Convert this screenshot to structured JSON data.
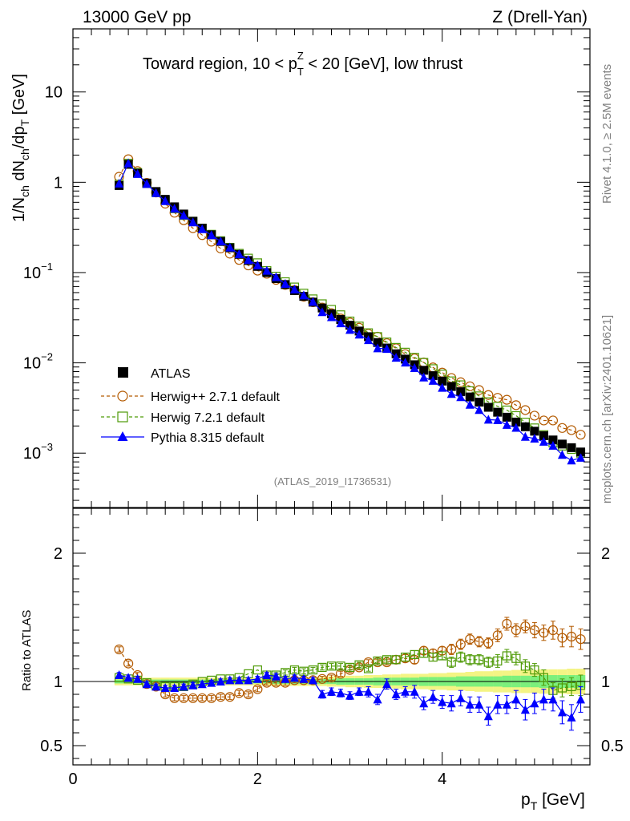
{
  "header": {
    "left": "13000 GeV pp",
    "right": "Z (Drell-Yan)"
  },
  "side": {
    "rivet": "Rivet 4.1.0, ≥ 2.5M events",
    "site": "mcplots.cern.ch [arXiv:2401.10621]"
  },
  "colors": {
    "atlas": "#000000",
    "herwigpp": "#b35a00",
    "herwig7": "#4e9a06",
    "pythia": "#0000ff",
    "band_inner": "#7cf07c",
    "band_outer": "#f4f484"
  },
  "chart_data": [
    {
      "type": "scatter",
      "panel": "main",
      "title_pre": "Toward region, 10 < p",
      "title_sup": "Z",
      "title_sub": "T",
      "title_post": " < 20 [GeV], low thrust",
      "ylabel": "1/N_ch dN_ch/dp_T [GeV]",
      "yscale": "log",
      "ylim": [
        0.00025,
        50
      ],
      "xlim": [
        0,
        5.6
      ],
      "yticks": [
        {
          "v": 10,
          "label": "10",
          "exp": ""
        },
        {
          "v": 1,
          "label": "1",
          "exp": ""
        },
        {
          "v": 0.1,
          "label": "10",
          "exp": "−1"
        },
        {
          "v": 0.01,
          "label": "10",
          "exp": "−2"
        },
        {
          "v": 0.001,
          "label": "10",
          "exp": "−3"
        }
      ],
      "analysis_id": "(ATLAS_2019_I1736531)",
      "x": [
        0.5,
        0.6,
        0.7,
        0.8,
        0.9,
        1.0,
        1.1,
        1.2,
        1.3,
        1.4,
        1.5,
        1.6,
        1.7,
        1.8,
        1.9,
        2.0,
        2.1,
        2.2,
        2.3,
        2.4,
        2.5,
        2.6,
        2.7,
        2.8,
        2.9,
        3.0,
        3.1,
        3.2,
        3.3,
        3.4,
        3.5,
        3.6,
        3.7,
        3.8,
        3.9,
        4.0,
        4.1,
        4.2,
        4.3,
        4.4,
        4.5,
        4.6,
        4.7,
        4.8,
        4.9,
        5.0,
        5.1,
        5.2,
        5.3,
        5.4,
        5.5
      ],
      "legend": [
        "ATLAS",
        "Herwig++ 2.7.1 default",
        "Herwig 7.2.1 default",
        "Pythia 8.315 default"
      ],
      "series": [
        {
          "name": "ATLAS",
          "values": [
            0.92,
            1.58,
            1.26,
            0.98,
            0.79,
            0.647,
            0.535,
            0.445,
            0.37,
            0.31,
            0.262,
            0.221,
            0.188,
            0.159,
            0.136,
            0.117,
            0.1,
            0.0857,
            0.0737,
            0.0632,
            0.0545,
            0.047,
            0.0405,
            0.0349,
            0.0302,
            0.0261,
            0.0225,
            0.0195,
            0.0168,
            0.0146,
            0.0126,
            0.011,
            0.00953,
            0.00827,
            0.00721,
            0.00628,
            0.00547,
            0.00479,
            0.00419,
            0.00367,
            0.00322,
            0.00284,
            0.0025,
            0.00221,
            0.00196,
            0.00175,
            0.00156,
            0.0014,
            0.00126,
            0.00115,
            0.00103
          ]
        },
        {
          "name": "Herwig++ 2.7.1 default",
          "values": [
            1.15,
            1.8,
            1.33,
            0.985,
            0.77,
            0.58,
            0.46,
            0.38,
            0.31,
            0.26,
            0.22,
            0.185,
            0.162,
            0.138,
            0.12,
            0.105,
            0.097,
            0.083,
            0.073,
            0.064,
            0.054,
            0.047,
            0.041,
            0.0355,
            0.031,
            0.028,
            0.0245,
            0.021,
            0.0195,
            0.0165,
            0.0145,
            0.0125,
            0.0112,
            0.0101,
            0.0089,
            0.0078,
            0.0068,
            0.0061,
            0.0055,
            0.005,
            0.0044,
            0.0041,
            0.0039,
            0.0034,
            0.003,
            0.0026,
            0.0023,
            0.0023,
            0.0019,
            0.0018,
            0.0016
          ]
        },
        {
          "name": "Herwig 7.2.1 default",
          "values": [
            0.95,
            1.62,
            1.28,
            0.97,
            0.77,
            0.63,
            0.51,
            0.43,
            0.37,
            0.31,
            0.265,
            0.225,
            0.19,
            0.163,
            0.144,
            0.128,
            0.105,
            0.091,
            0.079,
            0.069,
            0.059,
            0.051,
            0.045,
            0.039,
            0.034,
            0.029,
            0.0255,
            0.0215,
            0.0195,
            0.017,
            0.0148,
            0.0131,
            0.0115,
            0.0101,
            0.0086,
            0.0075,
            0.0063,
            0.0057,
            0.0049,
            0.0043,
            0.0037,
            0.0033,
            0.003,
            0.0026,
            0.0022,
            0.0019,
            0.0016,
            0.0013,
            0.0012,
            0.0011,
            0.001
          ]
        },
        {
          "name": "Pythia 8.315 default",
          "values": [
            0.97,
            1.62,
            1.24,
            0.96,
            0.76,
            0.62,
            0.51,
            0.43,
            0.36,
            0.303,
            0.26,
            0.222,
            0.19,
            0.16,
            0.138,
            0.12,
            0.105,
            0.089,
            0.075,
            0.065,
            0.056,
            0.0475,
            0.0365,
            0.0321,
            0.0275,
            0.0232,
            0.0206,
            0.0179,
            0.0145,
            0.0143,
            0.0114,
            0.0101,
            0.00877,
            0.0069,
            0.00634,
            0.0053,
            0.00454,
            0.00418,
            0.00344,
            0.00301,
            0.00235,
            0.00232,
            0.00206,
            0.00191,
            0.00152,
            0.00145,
            0.00134,
            0.00121,
            0.00096,
            0.00083,
            0.00089
          ]
        }
      ]
    },
    {
      "type": "scatter",
      "panel": "ratio",
      "ylabel": "Ratio to ATLAS",
      "xlabel_main": "p",
      "xlabel_sub": "T",
      "xlabel_unit": " [GeV]",
      "ylim": [
        0.35,
        2.35
      ],
      "xlim": [
        0,
        5.6
      ],
      "yticks": [
        {
          "v": 0.5,
          "label": "0.5"
        },
        {
          "v": 1,
          "label": "1"
        },
        {
          "v": 2,
          "label": "2"
        }
      ],
      "xticks": [
        {
          "v": 0,
          "label": "0"
        },
        {
          "v": 2,
          "label": "2"
        },
        {
          "v": 4,
          "label": "4"
        }
      ],
      "band_inner": [
        0.015,
        0.015,
        0.015,
        0.015,
        0.015,
        0.015,
        0.015,
        0.015,
        0.015,
        0.015,
        0.015,
        0.015,
        0.015,
        0.015,
        0.015,
        0.015,
        0.015,
        0.02,
        0.02,
        0.02,
        0.02,
        0.02,
        0.02,
        0.02,
        0.025,
        0.025,
        0.025,
        0.025,
        0.03,
        0.03,
        0.03,
        0.03,
        0.03,
        0.035,
        0.035,
        0.035,
        0.035,
        0.04,
        0.04,
        0.04,
        0.04,
        0.04,
        0.045,
        0.045,
        0.045,
        0.045,
        0.05,
        0.05,
        0.05,
        0.05,
        0.05
      ],
      "band_outer": [
        0.03,
        0.03,
        0.03,
        0.03,
        0.03,
        0.03,
        0.03,
        0.03,
        0.03,
        0.03,
        0.03,
        0.03,
        0.03,
        0.03,
        0.03,
        0.03,
        0.03,
        0.035,
        0.035,
        0.035,
        0.035,
        0.035,
        0.035,
        0.04,
        0.04,
        0.045,
        0.045,
        0.05,
        0.05,
        0.055,
        0.055,
        0.06,
        0.06,
        0.06,
        0.065,
        0.065,
        0.07,
        0.07,
        0.075,
        0.08,
        0.08,
        0.085,
        0.085,
        0.09,
        0.09,
        0.09,
        0.095,
        0.095,
        0.095,
        0.1,
        0.1
      ],
      "series": [
        {
          "name": "Herwig++ 2.7.1 default",
          "values": [
            1.25,
            1.14,
            1.05,
            0.98,
            0.96,
            0.9,
            0.87,
            0.87,
            0.87,
            0.87,
            0.87,
            0.88,
            0.88,
            0.91,
            0.9,
            0.94,
            0.99,
            0.99,
            0.99,
            1.01,
            1.01,
            1.01,
            1.02,
            1.03,
            1.06,
            1.09,
            1.11,
            1.15,
            1.15,
            1.15,
            1.17,
            1.18,
            1.17,
            1.24,
            1.22,
            1.24,
            1.25,
            1.29,
            1.33,
            1.31,
            1.3,
            1.36,
            1.45,
            1.4,
            1.43,
            1.4,
            1.38,
            1.4,
            1.34,
            1.35,
            1.33
          ],
          "err": [
            0.02,
            0.02,
            0.02,
            0.02,
            0.02,
            0.02,
            0.02,
            0.02,
            0.02,
            0.02,
            0.02,
            0.02,
            0.02,
            0.02,
            0.02,
            0.02,
            0.02,
            0.02,
            0.02,
            0.02,
            0.02,
            0.02,
            0.02,
            0.02,
            0.02,
            0.02,
            0.02,
            0.02,
            0.02,
            0.02,
            0.03,
            0.03,
            0.03,
            0.03,
            0.03,
            0.03,
            0.04,
            0.04,
            0.04,
            0.04,
            0.04,
            0.05,
            0.05,
            0.05,
            0.05,
            0.06,
            0.06,
            0.07,
            0.07,
            0.08,
            0.08
          ]
        },
        {
          "name": "Herwig 7.2.1 default",
          "values": [
            1.03,
            1.02,
            1.01,
            0.99,
            0.97,
            0.96,
            0.96,
            0.96,
            0.98,
            1.0,
            1.01,
            1.02,
            1.02,
            1.03,
            1.06,
            1.09,
            1.05,
            1.05,
            1.07,
            1.09,
            1.08,
            1.09,
            1.11,
            1.12,
            1.12,
            1.11,
            1.13,
            1.1,
            1.16,
            1.17,
            1.17,
            1.19,
            1.21,
            1.22,
            1.19,
            1.2,
            1.15,
            1.19,
            1.17,
            1.17,
            1.15,
            1.16,
            1.2,
            1.18,
            1.12,
            1.09,
            1.03,
            0.93,
            0.95,
            0.96,
            0.97
          ],
          "err": [
            0.01,
            0.01,
            0.01,
            0.01,
            0.01,
            0.01,
            0.01,
            0.01,
            0.01,
            0.01,
            0.01,
            0.01,
            0.01,
            0.01,
            0.01,
            0.01,
            0.02,
            0.02,
            0.02,
            0.02,
            0.02,
            0.02,
            0.02,
            0.02,
            0.02,
            0.02,
            0.02,
            0.02,
            0.02,
            0.02,
            0.03,
            0.03,
            0.03,
            0.03,
            0.03,
            0.03,
            0.04,
            0.04,
            0.04,
            0.04,
            0.04,
            0.05,
            0.05,
            0.05,
            0.05,
            0.05,
            0.06,
            0.06,
            0.07,
            0.07,
            0.08
          ]
        },
        {
          "name": "Pythia 8.315 default",
          "values": [
            1.05,
            1.03,
            1.02,
            0.98,
            0.96,
            0.95,
            0.95,
            0.96,
            0.97,
            0.98,
            0.99,
            1.0,
            1.01,
            1.01,
            1.01,
            1.02,
            1.05,
            1.04,
            1.02,
            1.03,
            1.02,
            1.01,
            0.9,
            0.92,
            0.91,
            0.89,
            0.92,
            0.92,
            0.86,
            0.98,
            0.9,
            0.92,
            0.92,
            0.83,
            0.88,
            0.84,
            0.83,
            0.87,
            0.82,
            0.82,
            0.73,
            0.82,
            0.82,
            0.86,
            0.78,
            0.83,
            0.86,
            0.86,
            0.76,
            0.72,
            0.86
          ],
          "err": [
            0.02,
            0.02,
            0.02,
            0.02,
            0.02,
            0.02,
            0.02,
            0.02,
            0.02,
            0.02,
            0.02,
            0.02,
            0.02,
            0.02,
            0.02,
            0.02,
            0.02,
            0.02,
            0.02,
            0.02,
            0.02,
            0.02,
            0.03,
            0.03,
            0.03,
            0.03,
            0.03,
            0.04,
            0.04,
            0.04,
            0.04,
            0.04,
            0.05,
            0.05,
            0.05,
            0.05,
            0.06,
            0.06,
            0.06,
            0.06,
            0.07,
            0.07,
            0.07,
            0.07,
            0.08,
            0.08,
            0.08,
            0.09,
            0.09,
            0.1,
            0.1
          ]
        }
      ]
    }
  ]
}
